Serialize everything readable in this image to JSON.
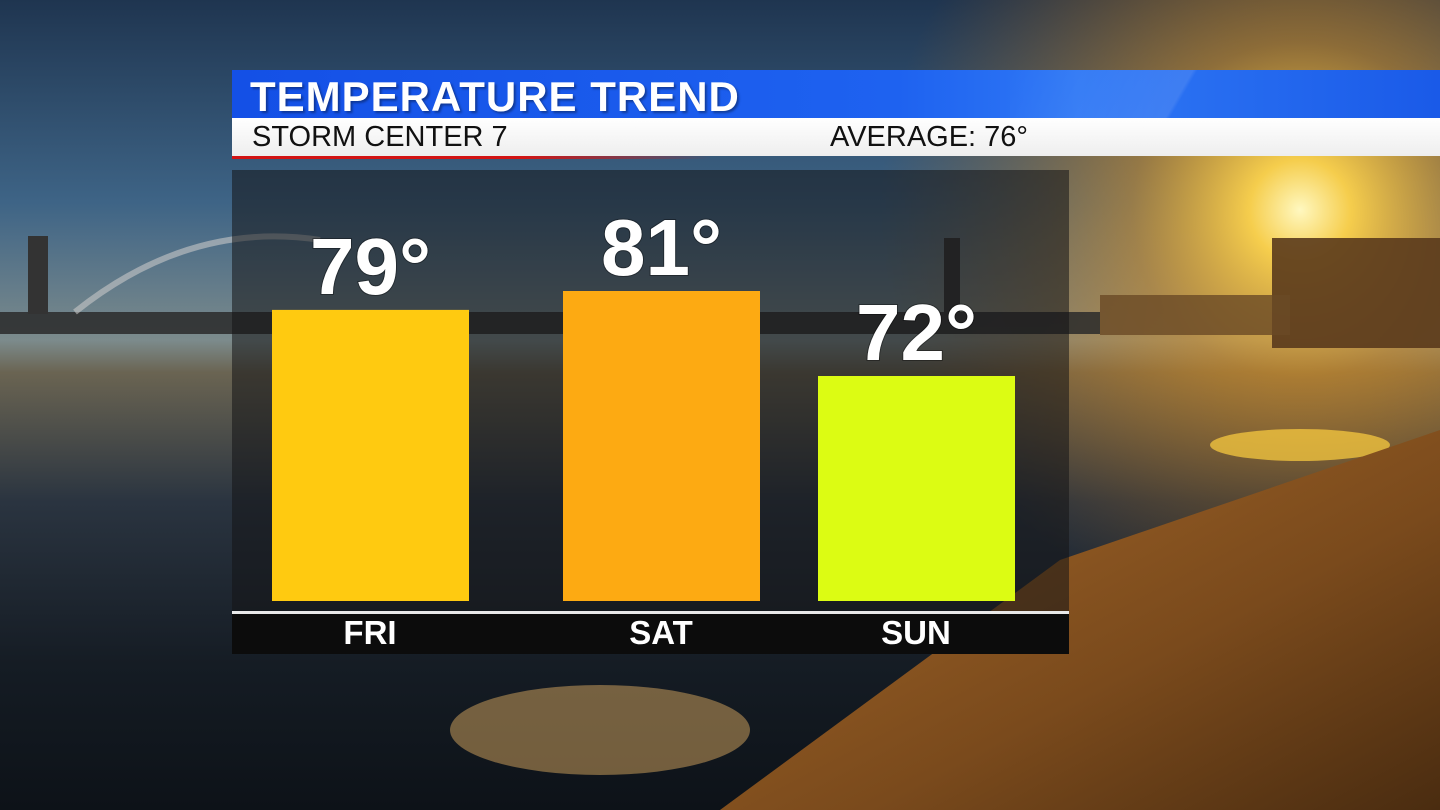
{
  "header": {
    "title": "TEMPERATURE TREND",
    "station": "STORM CENTER 7",
    "average": "AVERAGE: 76°"
  },
  "chart_data": {
    "type": "bar",
    "title": "TEMPERATURE TREND",
    "categories": [
      "FRI",
      "SAT",
      "SUN"
    ],
    "values": [
      79,
      81,
      72
    ],
    "value_labels": [
      "79°",
      "81°",
      "72°"
    ],
    "bar_colors": [
      "#ffca10",
      "#fdaa12",
      "#dcfc13"
    ],
    "grid": false,
    "legend": "none"
  }
}
